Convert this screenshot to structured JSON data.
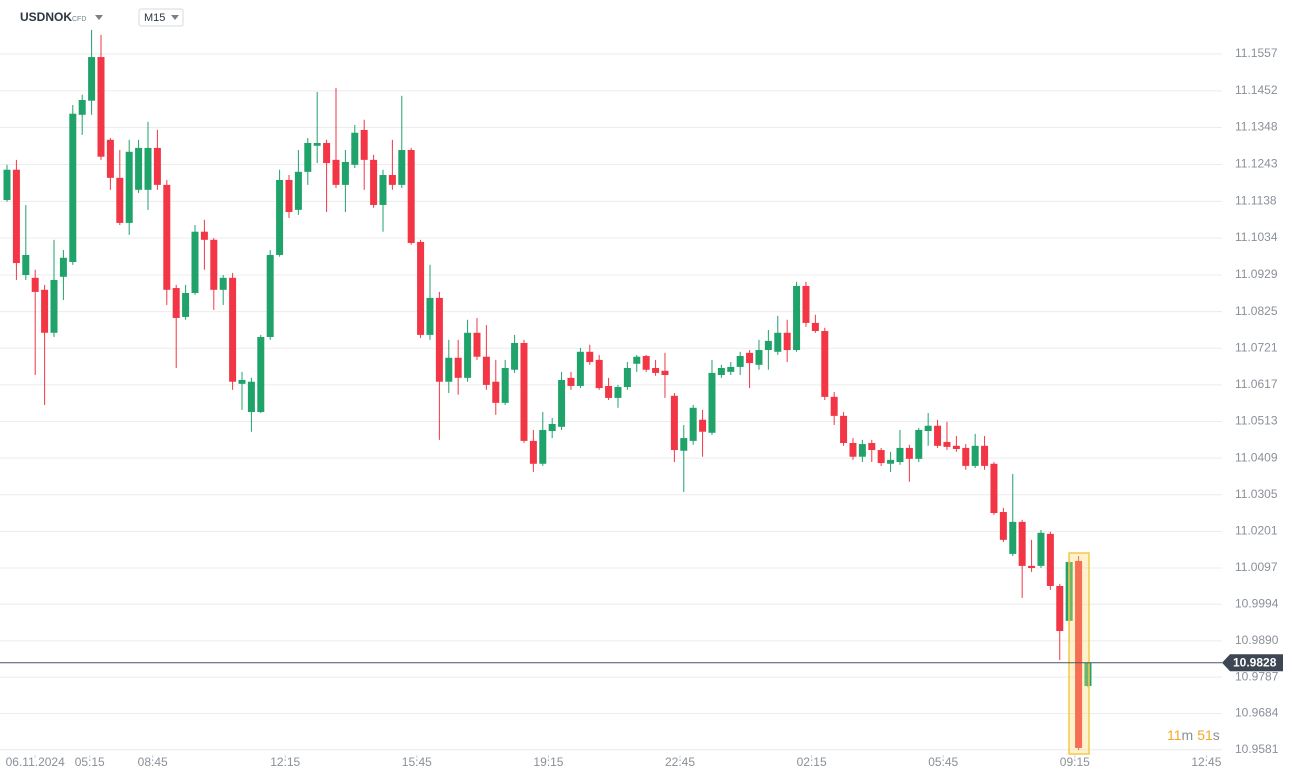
{
  "header": {
    "symbol": "USDNOK",
    "instrument_type": "CFD",
    "timeframe": "M15"
  },
  "chart_data": {
    "type": "candlestick",
    "up_color": "#1fa36b",
    "down_color": "#f23645",
    "grid": true,
    "ylim": [
      10.9566,
      11.171
    ],
    "yticks": [
      {
        "value": 11.1557,
        "label": "11.1557"
      },
      {
        "value": 11.1452,
        "label": "11.1452"
      },
      {
        "value": 11.1348,
        "label": "11.1348"
      },
      {
        "value": 11.1243,
        "label": "11.1243"
      },
      {
        "value": 11.1138,
        "label": "11.1138"
      },
      {
        "value": 11.1034,
        "label": "11.1034"
      },
      {
        "value": 11.0929,
        "label": "11.0929"
      },
      {
        "value": 11.0825,
        "label": "11.0825"
      },
      {
        "value": 11.0721,
        "label": "11.0721"
      },
      {
        "value": 11.0617,
        "label": "11.0617"
      },
      {
        "value": 11.0513,
        "label": "11.0513"
      },
      {
        "value": 11.0409,
        "label": "11.0409"
      },
      {
        "value": 11.0305,
        "label": "11.0305"
      },
      {
        "value": 11.0201,
        "label": "11.0201"
      },
      {
        "value": 11.0097,
        "label": "11.0097"
      },
      {
        "value": 10.9994,
        "label": "10.9994"
      },
      {
        "value": 10.989,
        "label": "10.9890"
      },
      {
        "value": 10.9787,
        "label": "10.9787"
      },
      {
        "value": 10.9684,
        "label": "10.9684"
      },
      {
        "value": 10.9581,
        "label": "10.9581"
      }
    ],
    "xlim": [
      -0.745,
      129.26
    ],
    "xticks": [
      {
        "value": 3,
        "label": "06.11.2024"
      },
      {
        "value": 8.8,
        "label": "05:15"
      },
      {
        "value": 15.5,
        "label": "08:45"
      },
      {
        "value": 29.6,
        "label": "12:15"
      },
      {
        "value": 43.6,
        "label": "15:45"
      },
      {
        "value": 57.6,
        "label": "19:15"
      },
      {
        "value": 71.6,
        "label": "22:45"
      },
      {
        "value": 85.6,
        "label": "02:15"
      },
      {
        "value": 99.6,
        "label": "05:45"
      },
      {
        "value": 113.6,
        "label": "09:15"
      },
      {
        "value": 127.6,
        "label": "12:45"
      }
    ],
    "open": [
      11.1142,
      11.1228,
      11.0929,
      11.0921,
      11.0887,
      11.0765,
      11.0924,
      11.0966,
      11.1384,
      11.1424,
      11.1548,
      11.1313,
      11.1205,
      11.1077,
      11.1171,
      11.1171,
      11.129,
      11.1185,
      11.0892,
      11.081,
      11.0878,
      11.1052,
      11.1029,
      11.0887,
      11.0921,
      11.062,
      11.054,
      11.054,
      11.0753,
      11.0986,
      11.1199,
      11.1114,
      11.1222,
      11.1296,
      11.1304,
      11.1256,
      11.1185,
      11.1242,
      11.1341,
      11.1256,
      11.1128,
      11.1213,
      11.1185,
      11.1284,
      11.1023,
      11.0759,
      11.0864,
      11.0626,
      11.0694,
      11.0637,
      11.0765,
      11.0697,
      11.0626,
      11.0566,
      11.066,
      11.0736,
      11.0458,
      11.0393,
      11.0486,
      11.0498,
      11.0637,
      11.0614,
      11.0711,
      11.0688,
      11.0614,
      11.058,
      11.0611,
      11.0677,
      11.0699,
      11.0665,
      11.0657,
      11.0586,
      11.043,
      11.0458,
      11.0518,
      11.0481,
      11.0645,
      11.0654,
      11.0668,
      11.0708,
      11.0674,
      11.0716,
      11.0711,
      11.0765,
      11.0716,
      11.0898,
      11.0793,
      11.077,
      11.0583,
      11.0529,
      11.0452,
      11.0413,
      11.0452,
      11.0432,
      11.0393,
      11.0398,
      11.0438,
      11.0407,
      11.0486,
      11.0501,
      11.0455,
      11.0444,
      11.0438,
      11.0387,
      11.0444,
      11.0393,
      11.0256,
      11.0137,
      11.0228,
      11.0103,
      11.0103,
      11.0194,
      11.0046,
      10.9947,
      11.0117,
      10.9762
    ],
    "high": [
      11.1242,
      11.1256,
      11.1128,
      11.0944,
      11.0901,
      11.1029,
      11.1,
      11.1412,
      11.1441,
      11.1625,
      11.1611,
      11.1318,
      11.1284,
      11.1313,
      11.1313,
      11.1364,
      11.1341,
      11.1199,
      11.0901,
      11.0901,
      11.1071,
      11.1086,
      11.1034,
      11.0929,
      11.0935,
      11.0654,
      11.0637,
      11.0759,
      11.1,
      11.1228,
      11.1213,
      11.1284,
      11.1318,
      11.1449,
      11.1313,
      11.146,
      11.1284,
      11.1355,
      11.137,
      11.127,
      11.1228,
      11.1313,
      11.1438,
      11.129,
      11.1029,
      11.0958,
      11.0881,
      11.0745,
      11.0745,
      11.0802,
      11.0807,
      11.0787,
      11.0688,
      11.0688,
      11.0759,
      11.0745,
      11.0489,
      11.054,
      11.0523,
      11.0654,
      11.0654,
      11.0722,
      11.0731,
      11.0702,
      11.0637,
      11.0617,
      11.0682,
      11.0702,
      11.0702,
      11.0688,
      11.0708,
      11.0594,
      11.0503,
      11.056,
      11.0546,
      11.0688,
      11.0674,
      11.0682,
      11.0711,
      11.0716,
      11.0745,
      11.0773,
      11.0813,
      11.0802,
      11.091,
      11.091,
      11.0816,
      11.0779,
      11.0597,
      11.054,
      11.0466,
      11.0461,
      11.0461,
      11.0438,
      11.0427,
      11.0489,
      11.0447,
      11.0495,
      11.0537,
      11.0518,
      11.0512,
      11.0472,
      11.0449,
      11.0478,
      11.0472,
      11.0398,
      11.0268,
      11.0364,
      11.0234,
      11.0177,
      11.0205,
      11.02,
      11.0052,
      11.0126,
      11.0131,
      10.983
    ],
    "low": [
      11.1137,
      11.0915,
      11.0915,
      11.0645,
      11.056,
      11.0753,
      11.0858,
      11.0958,
      11.1327,
      11.1384,
      11.1256,
      11.1171,
      11.1071,
      11.1043,
      11.1162,
      11.1114,
      11.1171,
      11.0844,
      11.0665,
      11.0802,
      11.0873,
      11.0944,
      11.083,
      11.0844,
      11.0603,
      11.0546,
      11.0484,
      11.0537,
      11.0745,
      11.0981,
      11.1091,
      11.11,
      11.1185,
      11.1247,
      11.1108,
      11.1176,
      11.1108,
      11.1233,
      11.1171,
      11.112,
      11.1052,
      11.1171,
      11.1176,
      11.1015,
      11.075,
      11.0745,
      11.0461,
      11.0594,
      11.0589,
      11.0626,
      11.0688,
      11.0603,
      11.0532,
      11.056,
      11.0651,
      11.0452,
      11.037,
      11.0387,
      11.0466,
      11.0489,
      11.0603,
      11.0608,
      11.0674,
      11.0603,
      11.0574,
      11.0552,
      11.0603,
      11.0654,
      11.0654,
      11.0643,
      11.058,
      11.0398,
      11.0313,
      11.0447,
      11.0413,
      11.0475,
      11.0637,
      11.0645,
      11.0645,
      11.0608,
      11.066,
      11.066,
      11.0702,
      11.0682,
      11.0711,
      11.0782,
      11.0765,
      11.0574,
      11.0503,
      11.0444,
      11.0404,
      11.0398,
      11.0398,
      11.0387,
      11.037,
      11.039,
      11.0342,
      11.0398,
      11.0444,
      11.0438,
      11.0432,
      11.0427,
      11.0376,
      11.0381,
      11.0376,
      11.0248,
      11.0171,
      11.0131,
      11.0012,
      11.0086,
      11.0097,
      11.0035,
      10.9836,
      10.9881,
      10.958,
      10.9759
    ],
    "close": [
      11.1228,
      11.0963,
      11.0986,
      11.0881,
      11.0765,
      11.0915,
      11.0978,
      11.1387,
      11.1426,
      11.1548,
      11.1265,
      11.1205,
      11.1077,
      11.1279,
      11.129,
      11.129,
      11.1185,
      11.0887,
      11.0807,
      11.0878,
      11.1052,
      11.1029,
      11.0887,
      11.0921,
      11.0626,
      11.0631,
      11.0626,
      11.0753,
      11.0986,
      11.1199,
      11.1108,
      11.1222,
      11.1304,
      11.1304,
      11.1247,
      11.1185,
      11.125,
      11.1333,
      11.1256,
      11.1128,
      11.1213,
      11.1185,
      11.1284,
      11.102,
      11.0759,
      11.0864,
      11.0626,
      11.0694,
      11.0637,
      11.0765,
      11.0697,
      11.0617,
      11.0566,
      11.0665,
      11.0736,
      11.0458,
      11.0393,
      11.0489,
      11.0506,
      11.0631,
      11.0614,
      11.0711,
      11.0682,
      11.0608,
      11.058,
      11.0611,
      11.0665,
      11.0697,
      11.066,
      11.0651,
      11.0645,
      11.0432,
      11.0466,
      11.0552,
      11.0484,
      11.0651,
      11.0665,
      11.0668,
      11.0699,
      11.0679,
      11.0716,
      11.0742,
      11.0765,
      11.0716,
      11.0898,
      11.0793,
      11.077,
      11.0583,
      11.0529,
      11.0452,
      11.0413,
      11.0449,
      11.0432,
      11.0395,
      11.0404,
      11.0438,
      11.0407,
      11.0489,
      11.0501,
      11.0444,
      11.0441,
      11.0435,
      11.0387,
      11.0444,
      11.0387,
      11.0253,
      11.0177,
      11.0228,
      11.0103,
      11.0097,
      11.0197,
      11.0046,
      10.9918,
      11.0114,
      10.9586,
      10.9828
    ],
    "last_price": 10.9828,
    "countdown": {
      "minutes": "11",
      "minutes_unit": "m",
      "seconds": "51",
      "seconds_unit": "s"
    }
  }
}
